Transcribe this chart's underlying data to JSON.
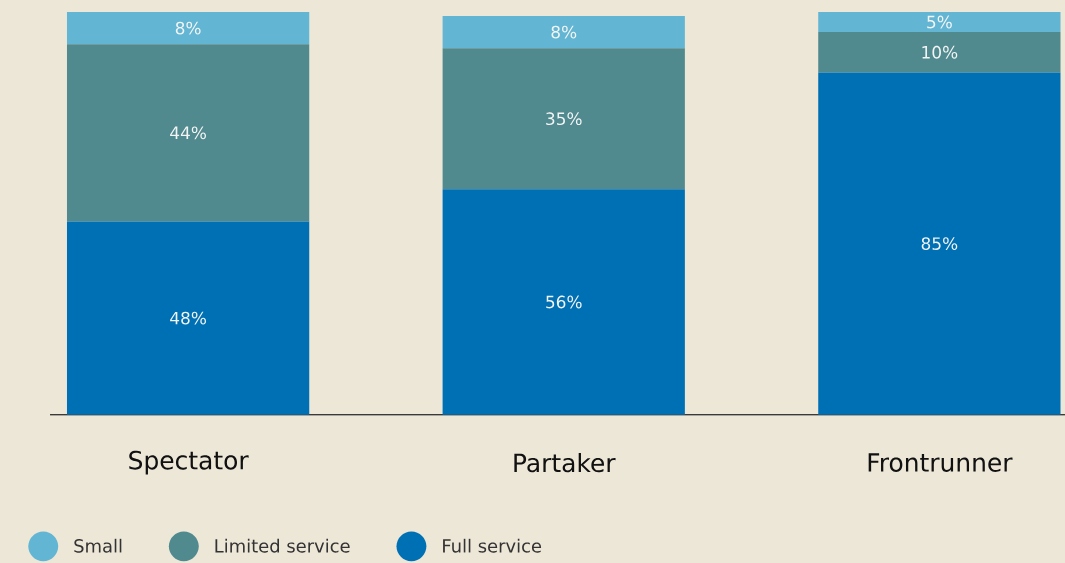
{
  "chart_data": {
    "type": "bar",
    "stacked": true,
    "categories": [
      "Spectator",
      "Partaker",
      "Frontrunner"
    ],
    "series": [
      {
        "name": "Full service",
        "color": "#0070b5",
        "values": [
          48,
          56,
          85
        ],
        "value_labels": [
          "48%",
          "56%",
          "85%"
        ]
      },
      {
        "name": "Limited service",
        "color": "#508a8f",
        "values": [
          44,
          35,
          10
        ],
        "value_labels": [
          "44%",
          "35%",
          "10%"
        ]
      },
      {
        "name": "Small",
        "color": "#62b6d3",
        "values": [
          8,
          8,
          5
        ],
        "value_labels": [
          "8%",
          "8%",
          "5%"
        ]
      }
    ],
    "legend": "bottom",
    "tick_labels": "x"
  }
}
